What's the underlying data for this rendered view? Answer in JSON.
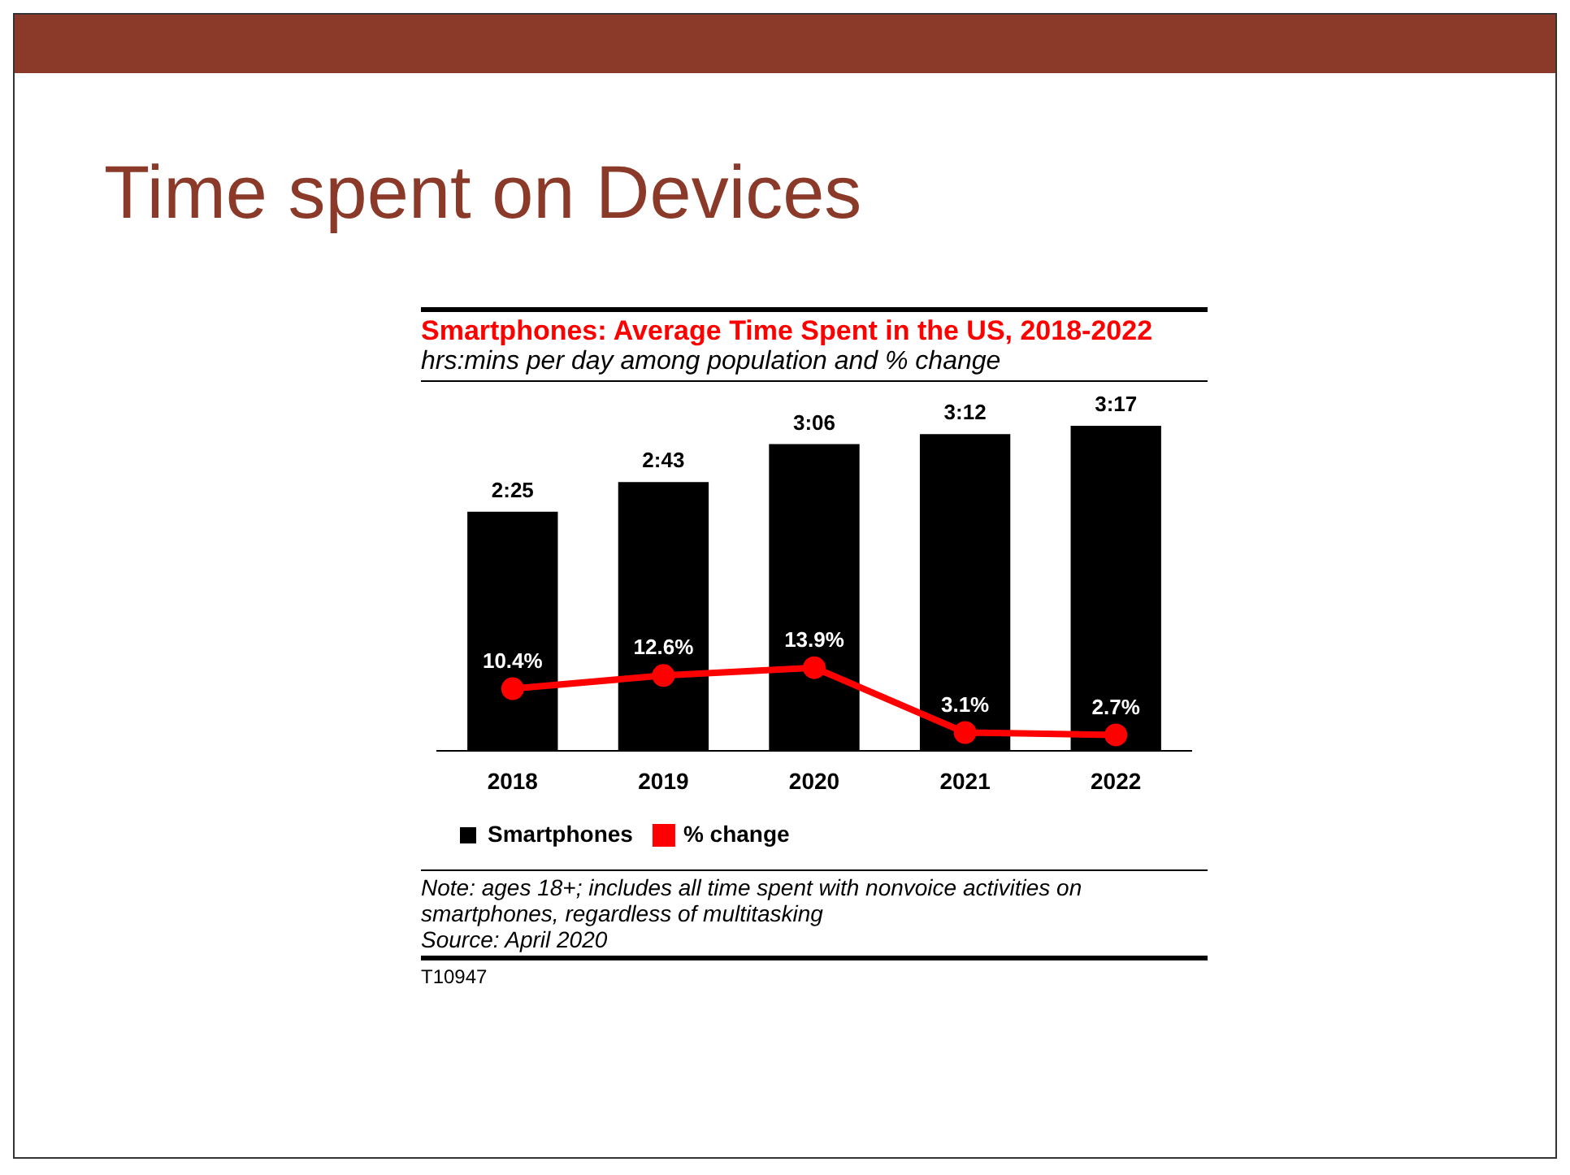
{
  "chart_data": {
    "type": "bar",
    "title": "Smartphones: Average Time Spent in the US, 2018-2022",
    "subtitle": "hrs:mins per day among population and % change",
    "annotations": [
      "Time spent on Devices",
      "Note: ages 18+; includes all time spent with nonvoice activities on smartphones, regardless of multitasking",
      "Source: April 2020",
      "T10947"
    ],
    "categories": [
      "2018",
      "2019",
      "2020",
      "2021",
      "2022"
    ],
    "series": [
      {
        "name": "Smartphones",
        "color": "#000000",
        "values": [
          145,
          163,
          186,
          192,
          197
        ],
        "value_labels": [
          "2:25",
          "2:43",
          "3:06",
          "3:12",
          "3:17"
        ]
      },
      {
        "name": "% change",
        "type": "line",
        "axis": "y2",
        "color": "#ff0000",
        "values": [
          10.4,
          12.6,
          13.9,
          3.1,
          2.7
        ],
        "value_labels": [
          "10.4%",
          "12.6%",
          "13.9%",
          "3.1%",
          "2.7%"
        ]
      }
    ],
    "ylim": [
      0,
      200
    ],
    "y2lim": [
      0,
      55
    ],
    "tick_labels": "x",
    "marker": "circle",
    "legend": "bottom"
  }
}
